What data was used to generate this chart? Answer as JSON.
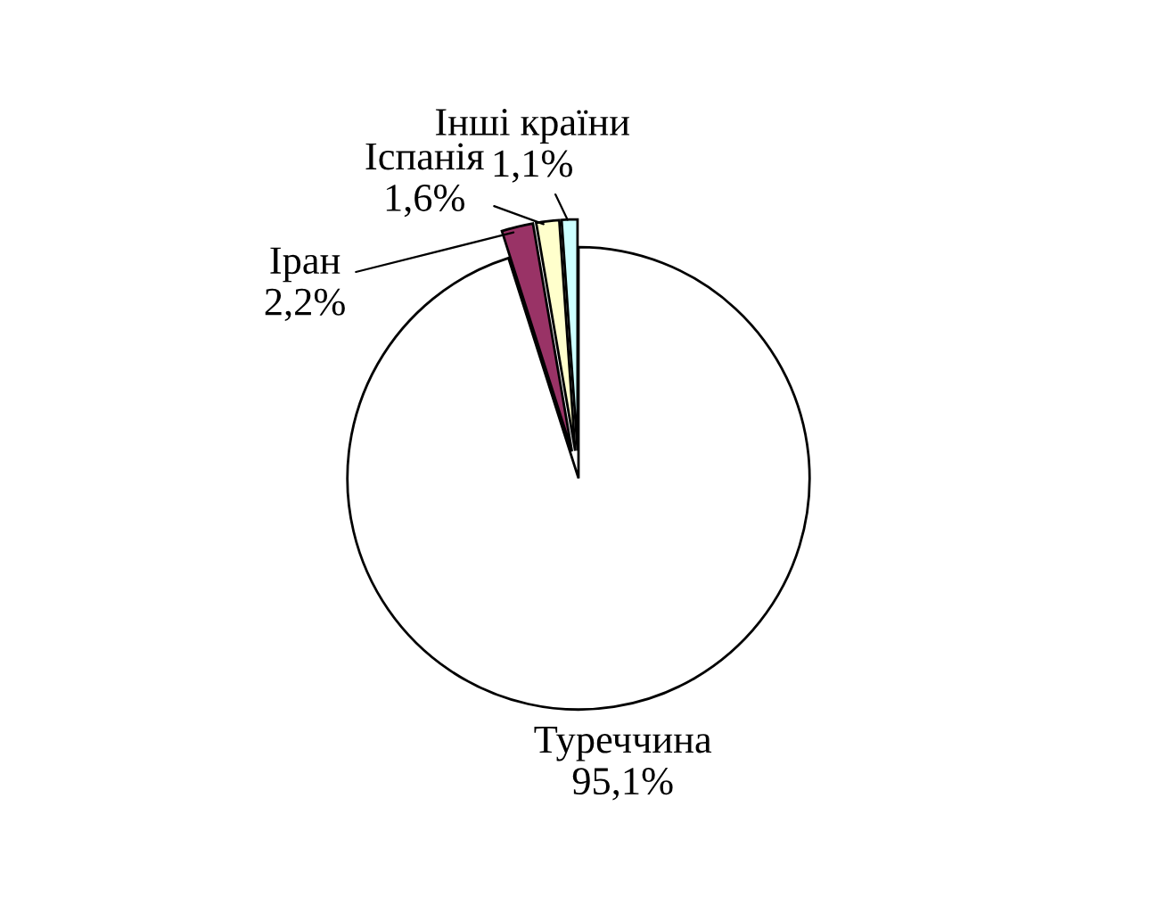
{
  "chart_data": {
    "type": "pie",
    "categories": [
      "Туреччина",
      "Іран",
      "Іспанія",
      "Інші країни"
    ],
    "values": [
      95.1,
      2.2,
      1.6,
      1.1
    ],
    "value_labels": [
      "95,1%",
      "2,2%",
      "1,6%",
      "1,1%"
    ],
    "colors": [
      "#ffffff",
      "#993366",
      "#ffffcc",
      "#ccffff"
    ],
    "legend": false
  }
}
